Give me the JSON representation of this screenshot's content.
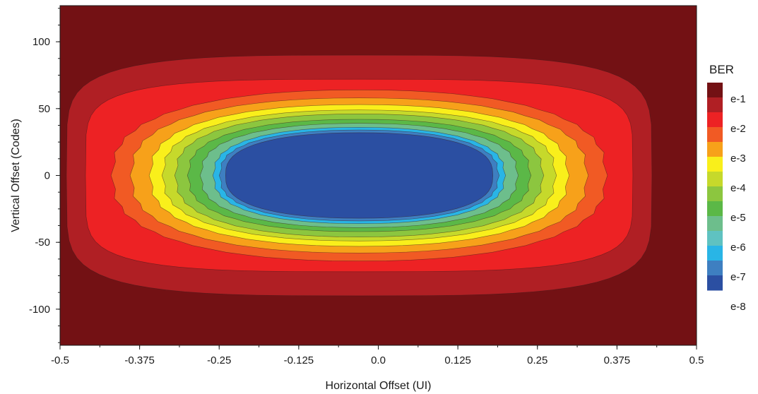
{
  "chart_data": {
    "type": "heatmap",
    "subtype": "filled-contour",
    "title": "",
    "xlabel": "Horizontal Offset (UI)",
    "ylabel": "Vertical Offset (Codes)",
    "xlim": [
      -0.5,
      0.5
    ],
    "ylim": [
      -127,
      127
    ],
    "x_ticks": [
      "-0.5",
      "-0.375",
      "-0.25",
      "-0.125",
      "0.0",
      "0.125",
      "0.25",
      "0.375",
      "0.5"
    ],
    "y_ticks": [
      "100",
      "50",
      "0",
      "-50",
      "-100"
    ],
    "x_tick_values": [
      -0.5,
      -0.375,
      -0.25,
      -0.125,
      0.0,
      0.125,
      0.25,
      0.375,
      0.5
    ],
    "y_tick_values": [
      100,
      50,
      0,
      -50,
      -100
    ],
    "grid": false,
    "legend": {
      "title": "BER",
      "placement": "right",
      "labels": [
        "e-1",
        "e-2",
        "e-3",
        "e-4",
        "e-5",
        "e-6",
        "e-7",
        "e-8"
      ],
      "colors": [
        "#731114",
        "#b01f24",
        "#ed2224",
        "#f15a24",
        "#f7a11a",
        "#f9ef1b",
        "#c6d92b",
        "#8cc63f",
        "#5bb847",
        "#6dbe8c",
        "#5fc2c1",
        "#29b5e6",
        "#3e7fc1",
        "#2b4fa2"
      ]
    },
    "contours": [
      {
        "level": "1",
        "color": "#731114",
        "half_width": 0.5,
        "half_height": 127
      },
      {
        "level": "e-1",
        "color": "#b01f24",
        "half_width": 0.46,
        "half_height": 90
      },
      {
        "level": "e-1.5",
        "color": "#ed2224",
        "half_width": 0.43,
        "half_height": 72
      },
      {
        "level": "e-2",
        "color": "#f15a24",
        "half_width": 0.39,
        "half_height": 64
      },
      {
        "level": "e-2.5",
        "color": "#f7a11a",
        "half_width": 0.36,
        "half_height": 58
      },
      {
        "level": "e-3",
        "color": "#f9ef1b",
        "half_width": 0.33,
        "half_height": 53
      },
      {
        "level": "e-3.5",
        "color": "#c6d92b",
        "half_width": 0.31,
        "half_height": 49
      },
      {
        "level": "e-4",
        "color": "#8cc63f",
        "half_width": 0.29,
        "half_height": 46
      },
      {
        "level": "e-4.5",
        "color": "#5bb847",
        "half_width": 0.27,
        "half_height": 42
      },
      {
        "level": "e-5",
        "color": "#6dbe8c",
        "half_width": 0.25,
        "half_height": 39
      },
      {
        "level": "e-6",
        "color": "#29b5e6",
        "half_width": 0.23,
        "half_height": 36
      },
      {
        "level": "e-7",
        "color": "#3e7fc1",
        "half_width": 0.22,
        "half_height": 34
      },
      {
        "level": "e-8",
        "color": "#2b4fa2",
        "half_width": 0.21,
        "half_height": 32
      }
    ]
  }
}
